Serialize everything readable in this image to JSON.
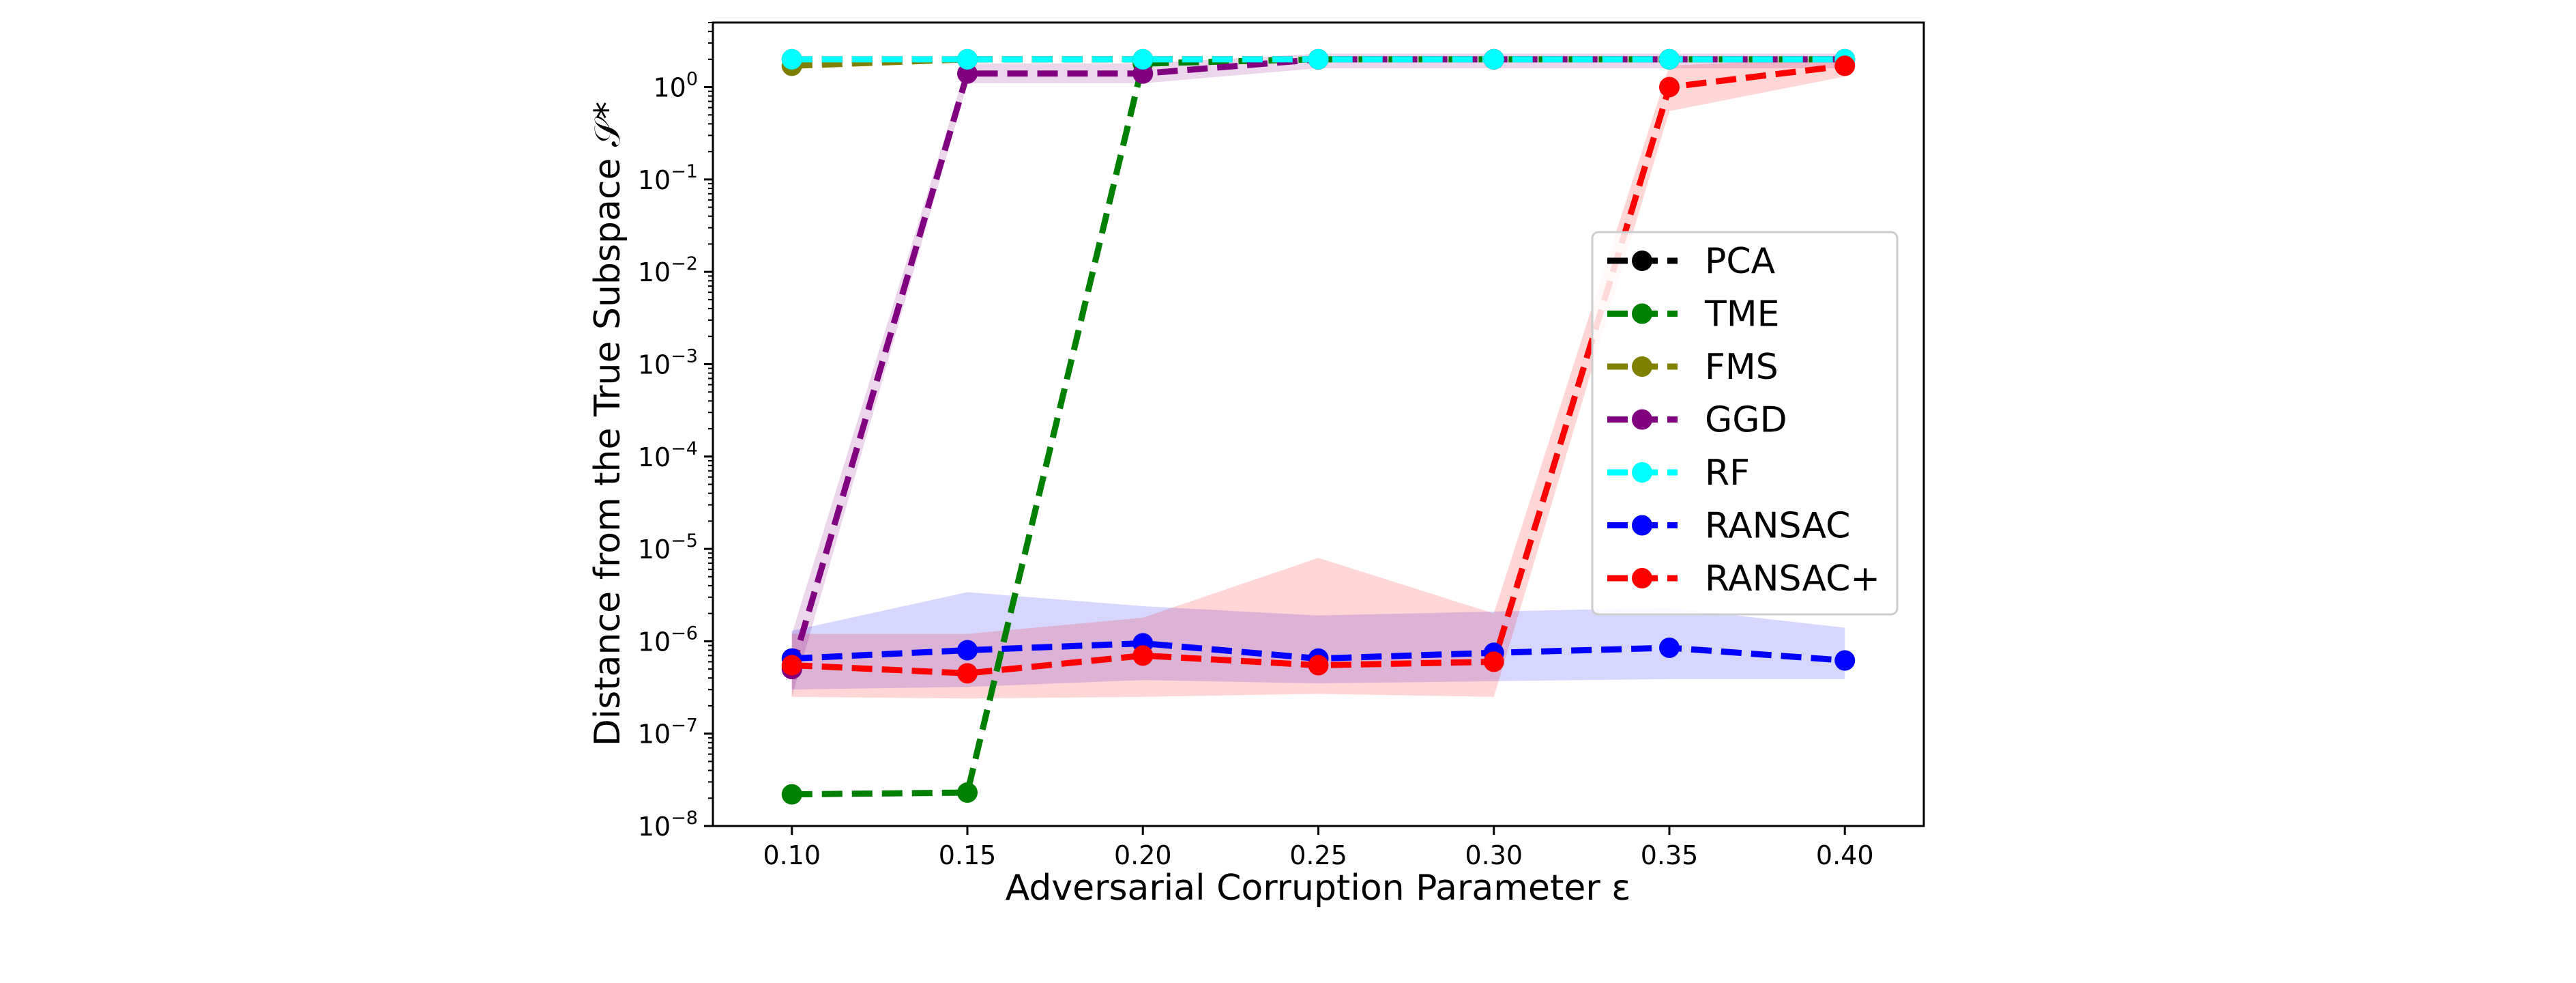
{
  "chart_data": {
    "type": "line",
    "xlabel": "Adversarial Corruption Parameter ε",
    "ylabel": "Distance from the True Subspace 𝒮*",
    "yscale": "log",
    "xlim": [
      0.0775,
      0.4225
    ],
    "ylim": [
      1e-08,
      5
    ],
    "x_ticks": [
      0.1,
      0.15,
      0.2,
      0.25,
      0.3,
      0.35,
      0.4
    ],
    "x_tick_labels": [
      "0.10",
      "0.15",
      "0.20",
      "0.25",
      "0.30",
      "0.35",
      "0.40"
    ],
    "y_ticks": [
      1e-08,
      1e-07,
      1e-06,
      1e-05,
      0.0001,
      0.001,
      0.01,
      0.1,
      1
    ],
    "y_tick_labels": [
      {
        "base": "10",
        "exp": "−8"
      },
      {
        "base": "10",
        "exp": "−7"
      },
      {
        "base": "10",
        "exp": "−6"
      },
      {
        "base": "10",
        "exp": "−5"
      },
      {
        "base": "10",
        "exp": "−4"
      },
      {
        "base": "10",
        "exp": "−3"
      },
      {
        "base": "10",
        "exp": "−2"
      },
      {
        "base": "10",
        "exp": "−1"
      },
      {
        "base": "10",
        "exp": "0"
      }
    ],
    "grid": false,
    "legend_position": "center-right",
    "x": [
      0.1,
      0.15,
      0.2,
      0.25,
      0.3,
      0.35,
      0.4
    ],
    "series": [
      {
        "name": "PCA",
        "color": "#000000",
        "values": [
          2.0,
          2.0,
          2.0,
          2.0,
          2.0,
          2.0,
          2.0
        ]
      },
      {
        "name": "TME",
        "color": "#008000",
        "values": [
          2.2e-08,
          2.3e-08,
          1.8,
          2.0,
          2.0,
          2.0,
          2.0
        ]
      },
      {
        "name": "FMS",
        "color": "#808000",
        "values": [
          1.7,
          2.0,
          2.0,
          2.0,
          2.0,
          2.0,
          2.0
        ]
      },
      {
        "name": "GGD",
        "color": "#800080",
        "values": [
          5e-07,
          1.4,
          1.4,
          2.0,
          2.0,
          2.0,
          2.0
        ],
        "band_low": [
          2.5e-07,
          1.1,
          1.1,
          1.6,
          1.6,
          1.6,
          1.6
        ],
        "band_high": [
          1.2e-06,
          1.8,
          1.8,
          2.3,
          2.3,
          2.3,
          2.3
        ]
      },
      {
        "name": "RF",
        "color": "#00ffff",
        "values": [
          2.0,
          2.0,
          2.0,
          2.0,
          2.0,
          2.0,
          2.0
        ]
      },
      {
        "name": "RANSAC",
        "color": "#0000ff",
        "values": [
          6.5e-07,
          8e-07,
          9.5e-07,
          6.5e-07,
          7.5e-07,
          8.5e-07,
          6.2e-07
        ],
        "band_low": [
          3e-07,
          3.2e-07,
          3.8e-07,
          3.5e-07,
          3.7e-07,
          3.9e-07,
          3.9e-07
        ],
        "band_high": [
          1.3e-06,
          3.4e-06,
          2.4e-06,
          1.9e-06,
          2.1e-06,
          2.3e-06,
          1.4e-06
        ]
      },
      {
        "name": "RANSAC+",
        "color": "#ff0000",
        "values": [
          5.5e-07,
          4.5e-07,
          7e-07,
          5.5e-07,
          6e-07,
          1.0,
          1.7
        ],
        "band_low": [
          2.5e-07,
          2.4e-07,
          2.5e-07,
          2.7e-07,
          2.5e-07,
          0.55,
          1.3
        ],
        "band_high": [
          1.2e-06,
          1.2e-06,
          1.8e-06,
          8e-06,
          2e-06,
          1.7,
          2.1
        ]
      }
    ]
  }
}
